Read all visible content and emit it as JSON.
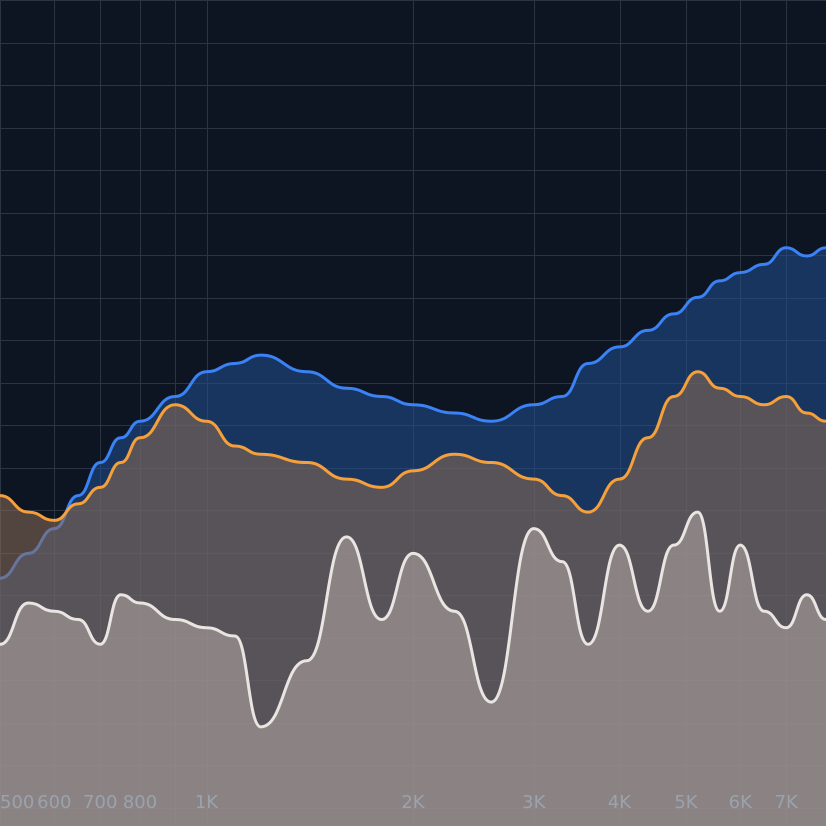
{
  "colors": {
    "background": "#0d1522",
    "grid": "#2a3442",
    "tick_label": "#9aa3ad",
    "series": [
      "#3b82f6",
      "#f5a03a",
      "#e9e5e2"
    ],
    "series_fill": [
      "#21508f",
      "#8c6b56",
      "#b7aca6"
    ]
  },
  "chart_data": {
    "type": "area",
    "grid": true,
    "xscale": "log",
    "xlim": [
      500,
      8000
    ],
    "ylim": [
      0,
      100
    ],
    "x_tick_values": [
      500,
      600,
      700,
      800,
      1000,
      2000,
      3000,
      4000,
      5000,
      6000,
      7000
    ],
    "x_tick_labels": [
      "500",
      "600",
      "700",
      "800",
      "1K",
      "2K",
      "3K",
      "4K",
      "5K",
      "6K",
      "7K"
    ],
    "x": [
      500,
      550,
      600,
      650,
      700,
      750,
      800,
      900,
      1000,
      1100,
      1200,
      1400,
      1600,
      1800,
      2000,
      2300,
      2600,
      3000,
      3300,
      3600,
      4000,
      4400,
      4800,
      5200,
      5600,
      6000,
      6500,
      7000,
      7500,
      8000
    ],
    "series": [
      {
        "values": [
          30,
          33,
          36,
          40,
          44,
          47,
          49,
          52,
          55,
          56,
          57,
          55,
          53,
          52,
          51,
          50,
          49,
          51,
          52,
          56,
          58,
          60,
          62,
          64,
          66,
          67,
          68,
          70,
          69,
          70
        ]
      },
      {
        "values": [
          40,
          38,
          37,
          39,
          41,
          44,
          47,
          51,
          49,
          46,
          45,
          44,
          42,
          41,
          43,
          45,
          44,
          42,
          40,
          38,
          42,
          47,
          52,
          55,
          53,
          52,
          51,
          52,
          50,
          49
        ]
      },
      {
        "values": [
          22,
          27,
          26,
          25,
          22,
          28,
          27,
          25,
          24,
          23,
          12,
          20,
          35,
          25,
          33,
          26,
          15,
          36,
          32,
          22,
          34,
          26,
          34,
          38,
          26,
          34,
          26,
          24,
          28,
          25
        ]
      }
    ]
  }
}
